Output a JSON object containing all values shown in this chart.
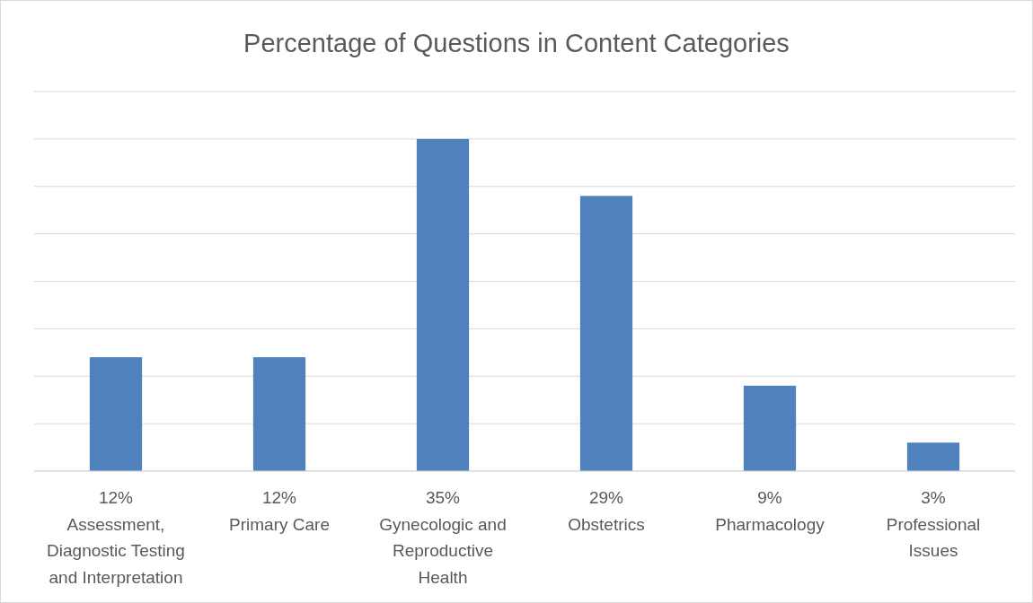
{
  "chart_data": {
    "type": "bar",
    "title": "Percentage of Questions in Content Categories",
    "categories": [
      "Assessment, Diagnostic Testing and Interpretation",
      "Primary Care",
      "Gynecologic and Reproductive Health",
      "Obstetrics",
      "Pharmacology",
      "Professional Issues"
    ],
    "values": [
      12,
      12,
      35,
      29,
      9,
      3
    ],
    "value_labels": [
      "12%",
      "12%",
      "35%",
      "29%",
      "9%",
      "3%"
    ],
    "color": "#4f81bd",
    "ylim": [
      0,
      40
    ],
    "yticks": [
      {
        "value": 0,
        "label": null
      },
      {
        "value": 5,
        "label": null
      },
      {
        "value": 10,
        "label": null
      },
      {
        "value": 15,
        "label": null
      },
      {
        "value": 20,
        "label": null
      },
      {
        "value": 25,
        "label": null
      },
      {
        "value": 30,
        "label": null
      },
      {
        "value": 35,
        "label": null
      },
      {
        "value": 40,
        "label": null
      }
    ],
    "tick_labels": "x",
    "grid": "y"
  }
}
